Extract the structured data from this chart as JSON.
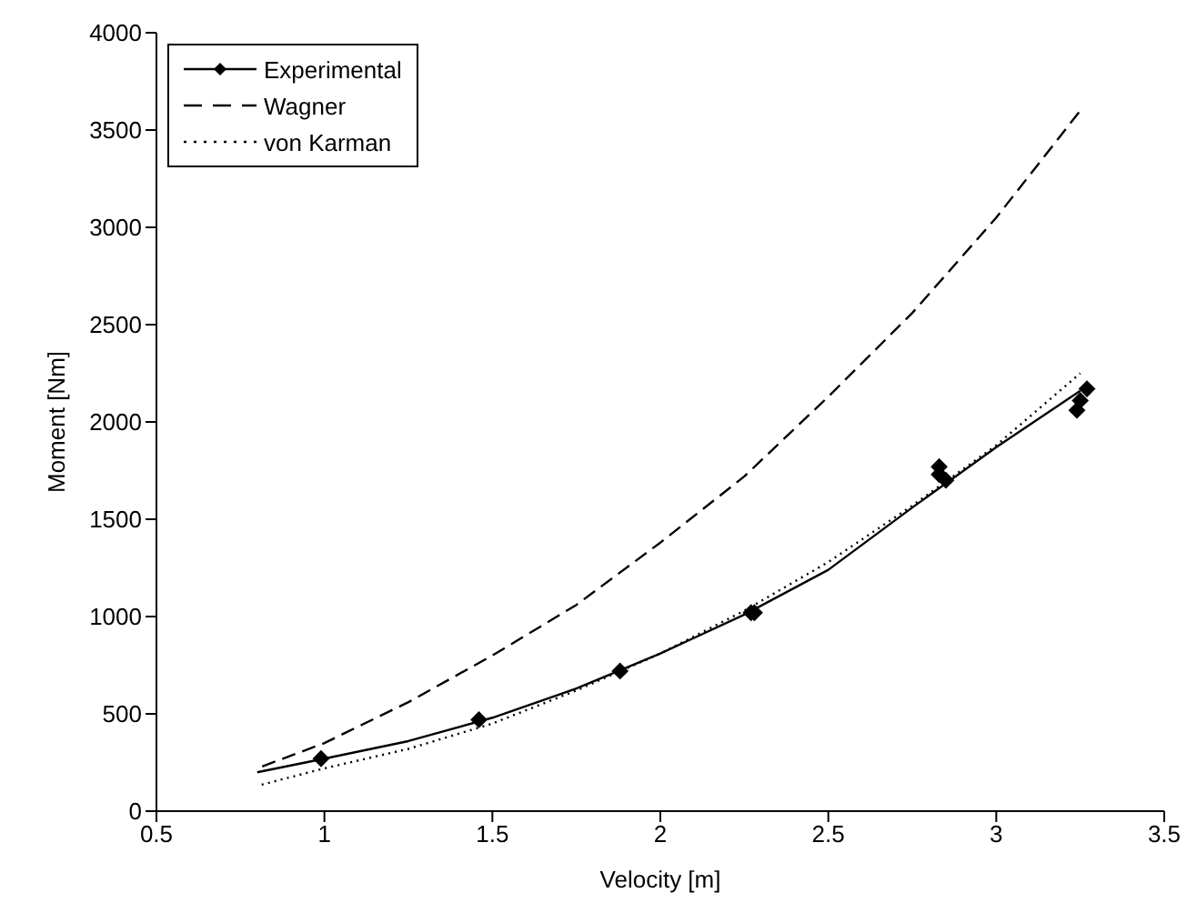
{
  "chart_data": {
    "type": "line",
    "xlabel": "Velocity [m]",
    "ylabel": "Moment [Nm]",
    "xlim": [
      0.5,
      3.5
    ],
    "xticks": [
      0.5,
      1,
      1.5,
      2,
      2.5,
      3,
      3.5
    ],
    "ylim": [
      0,
      4000
    ],
    "yticks": [
      0,
      500,
      1000,
      1500,
      2000,
      2500,
      3000,
      3500,
      4000
    ],
    "grid": false,
    "legend": "top left",
    "series": [
      {
        "name": "Experimental",
        "type": "scatter",
        "marker": "diamond",
        "color": "#000000",
        "x": [
          0.99,
          1.46,
          1.88,
          2.27,
          2.28,
          2.83,
          2.83,
          2.85,
          3.24,
          3.25,
          3.27
        ],
        "values": [
          270,
          470,
          720,
          1020,
          1020,
          1770,
          1730,
          1700,
          2060,
          2110,
          2170
        ]
      },
      {
        "line_style": "solid",
        "color": "#000000",
        "x": [
          0.8,
          1.0,
          1.25,
          1.5,
          1.75,
          2.0,
          2.25,
          2.5,
          2.75,
          3.0,
          3.25
        ],
        "values": [
          200,
          270,
          360,
          480,
          630,
          810,
          1010,
          1240,
          1560,
          1870,
          2160
        ]
      },
      {
        "name": "Wagner",
        "line_style": "dashed",
        "color": "#000000",
        "x": [
          0.8,
          1.0,
          1.25,
          1.5,
          1.75,
          2.0,
          2.25,
          2.5,
          2.75,
          3.0,
          3.25
        ],
        "values": [
          220,
          350,
          560,
          800,
          1060,
          1380,
          1720,
          2130,
          2560,
          3050,
          3600
        ]
      },
      {
        "name": "von Karman",
        "line_style": "dotted",
        "color": "#000000",
        "x": [
          0.8,
          1.0,
          1.25,
          1.5,
          1.75,
          2.0,
          2.25,
          2.5,
          2.75,
          3.0,
          3.25
        ],
        "values": [
          130,
          220,
          320,
          450,
          620,
          810,
          1030,
          1280,
          1570,
          1880,
          2250
        ]
      }
    ]
  }
}
